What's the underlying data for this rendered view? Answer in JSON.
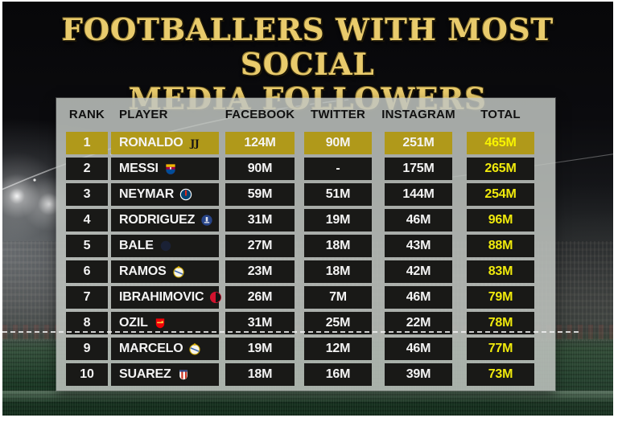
{
  "title": {
    "line1": "FOOTBALLERS WITH MOST SOCIAL",
    "line2": "MEDIA FOLLOWERS"
  },
  "colors": {
    "title_gold": "#e9cb6c",
    "frame_gray": "#c1c5c1",
    "highlight_row_gold": "#b0991a",
    "row_dark": "#191917",
    "total_yellow": "#f0ea0c",
    "header_text": "#101010",
    "pitch_green": "#1c3a26"
  },
  "table": {
    "headers": [
      "RANK",
      "PLAYER",
      "FACEBOOK",
      "TWITTER",
      "INSTAGRAM",
      "TOTAL"
    ],
    "rows": [
      {
        "rank": "1",
        "player": "RONALDO",
        "club": "juventus",
        "facebook": "124M",
        "twitter": "90M",
        "instagram": "251M",
        "total": "465M",
        "highlight": true
      },
      {
        "rank": "2",
        "player": "MESSI",
        "club": "barcelona",
        "facebook": "90M",
        "twitter": "-",
        "instagram": "175M",
        "total": "265M",
        "highlight": false
      },
      {
        "rank": "3",
        "player": "NEYMAR",
        "club": "psg",
        "facebook": "59M",
        "twitter": "51M",
        "instagram": "144M",
        "total": "254M",
        "highlight": false
      },
      {
        "rank": "4",
        "player": "RODRIGUEZ",
        "club": "everton",
        "facebook": "31M",
        "twitter": "19M",
        "instagram": "46M",
        "total": "96M",
        "highlight": false
      },
      {
        "rank": "5",
        "player": "BALE",
        "club": "faded",
        "facebook": "27M",
        "twitter": "18M",
        "instagram": "43M",
        "total": "88M",
        "highlight": false
      },
      {
        "rank": "6",
        "player": "RAMOS",
        "club": "real-madrid",
        "facebook": "23M",
        "twitter": "18M",
        "instagram": "42M",
        "total": "83M",
        "highlight": false
      },
      {
        "rank": "7",
        "player": "IBRAHIMOVIC",
        "club": "ac-milan",
        "facebook": "26M",
        "twitter": "7M",
        "instagram": "46M",
        "total": "79M",
        "highlight": false
      },
      {
        "rank": "8",
        "player": "OZIL",
        "club": "arsenal",
        "facebook": "31M",
        "twitter": "25M",
        "instagram": "22M",
        "total": "78M",
        "highlight": false
      },
      {
        "rank": "9",
        "player": "MARCELO",
        "club": "real-madrid",
        "facebook": "19M",
        "twitter": "12M",
        "instagram": "46M",
        "total": "77M",
        "highlight": false
      },
      {
        "rank": "10",
        "player": "SUAREZ",
        "club": "atletico",
        "facebook": "18M",
        "twitter": "16M",
        "instagram": "39M",
        "total": "73M",
        "highlight": false
      }
    ]
  },
  "chart_data": {
    "type": "table",
    "title": "FOOTBALLERS WITH MOST SOCIAL MEDIA FOLLOWERS",
    "columns": [
      "RANK",
      "PLAYER",
      "FACEBOOK",
      "TWITTER",
      "INSTAGRAM",
      "TOTAL"
    ],
    "rows": [
      [
        1,
        "RONALDO",
        "124M",
        "90M",
        "251M",
        "465M"
      ],
      [
        2,
        "MESSI",
        "90M",
        "-",
        "175M",
        "265M"
      ],
      [
        3,
        "NEYMAR",
        "59M",
        "51M",
        "144M",
        "254M"
      ],
      [
        4,
        "RODRIGUEZ",
        "31M",
        "19M",
        "46M",
        "96M"
      ],
      [
        5,
        "BALE",
        "27M",
        "18M",
        "43M",
        "88M"
      ],
      [
        6,
        "RAMOS",
        "23M",
        "18M",
        "42M",
        "83M"
      ],
      [
        7,
        "IBRAHIMOVIC",
        "26M",
        "7M",
        "46M",
        "79M"
      ],
      [
        8,
        "OZIL",
        "31M",
        "25M",
        "22M",
        "78M"
      ],
      [
        9,
        "MARCELO",
        "19M",
        "12M",
        "46M",
        "77M"
      ],
      [
        10,
        "SUAREZ",
        "18M",
        "16M",
        "39M",
        "73M"
      ]
    ],
    "notes": "Rank 1 row highlighted gold; TOTAL column values shown in yellow"
  }
}
